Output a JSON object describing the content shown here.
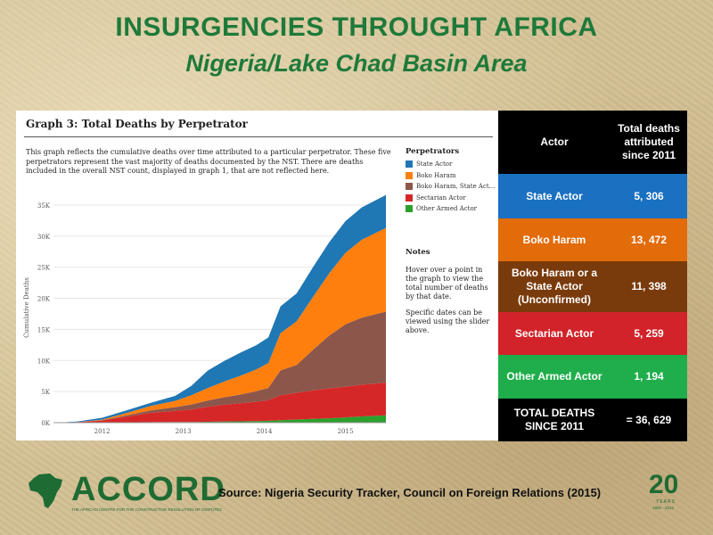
{
  "header": {
    "title": "INSURGENCIES THROUGHT AFRICA",
    "subtitle": "Nigeria/Lake Chad Basin Area"
  },
  "graph": {
    "title": "Graph 3: Total Deaths by Perpetrator",
    "description": "This graph reflects the cumulative deaths over time attributed to a particular perpetrator. These five perpetrators represent the vast majority of deaths documented by the NST. There are deaths included in the overall NST count, displayed in graph 1, that are not reflected here.",
    "legend_title": "Perpetrators",
    "notes_title": "Notes",
    "notes": [
      "Hover over a point in the graph to view the total number of deaths by that date.",
      "Specific dates can be viewed using the slider above."
    ]
  },
  "chart_data": {
    "type": "area",
    "stacked": true,
    "ylabel": "Cumulative Deaths",
    "xlabel": "",
    "ylim": [
      0,
      37000
    ],
    "xlim": [
      2011.4,
      2015.5
    ],
    "y_ticks": [
      0,
      5000,
      10000,
      15000,
      20000,
      25000,
      30000,
      35000
    ],
    "y_tick_labels": [
      "0K",
      "5K",
      "10K",
      "15K",
      "20K",
      "25K",
      "30K",
      "35K"
    ],
    "x_ticks": [
      2012,
      2013,
      2014,
      2015
    ],
    "x_tick_labels": [
      "2012",
      "2013",
      "2014",
      "2015"
    ],
    "grid": true,
    "legend_position": "right",
    "x": [
      2011.45,
      2011.7,
      2012.0,
      2012.3,
      2012.6,
      2012.9,
      2013.1,
      2013.3,
      2013.5,
      2013.7,
      2013.9,
      2014.05,
      2014.2,
      2014.4,
      2014.6,
      2014.8,
      2015.0,
      2015.2,
      2015.5
    ],
    "series": [
      {
        "name": "Other Armed Actor",
        "color": "#2ca02c",
        "values": [
          0,
          20,
          40,
          60,
          80,
          100,
          120,
          150,
          180,
          210,
          250,
          300,
          400,
          500,
          600,
          700,
          850,
          1000,
          1194
        ]
      },
      {
        "name": "Sectarian Actor",
        "color": "#d62728",
        "values": [
          0,
          80,
          300,
          900,
          1500,
          1800,
          2000,
          2400,
          2700,
          2900,
          3100,
          3300,
          4000,
          4300,
          4600,
          4800,
          4950,
          5100,
          5259
        ]
      },
      {
        "name": "Boko Haram, State Act...",
        "color": "#8c564b",
        "values": [
          0,
          0,
          50,
          200,
          400,
          600,
          800,
          1000,
          1200,
          1400,
          1700,
          2000,
          4000,
          4500,
          6500,
          8500,
          10000,
          10800,
          11398
        ]
      },
      {
        "name": "Boko Haram",
        "color": "#ff7f0e",
        "values": [
          0,
          0,
          100,
          400,
          700,
          1000,
          1500,
          2000,
          2500,
          3000,
          3500,
          4000,
          6000,
          7000,
          8500,
          10000,
          11500,
          12500,
          13472
        ]
      },
      {
        "name": "State Actor",
        "color": "#1f77b4",
        "values": [
          0,
          100,
          300,
          400,
          500,
          800,
          1500,
          2800,
          3300,
          3700,
          3900,
          4100,
          4300,
          4500,
          4800,
          5000,
          5100,
          5200,
          5306
        ]
      }
    ]
  },
  "table": {
    "header": {
      "actor": "Actor",
      "deaths": "Total deaths attributed since 2011"
    },
    "rows": [
      {
        "actor": "State Actor",
        "deaths": "5, 306",
        "color": "#1a70c1"
      },
      {
        "actor": "Boko Haram",
        "deaths": "13, 472",
        "color": "#e26b0a"
      },
      {
        "actor": "Boko Haram or a State Actor (Unconfirmed)",
        "deaths": "11, 398",
        "color": "#7a3b0c"
      },
      {
        "actor": "Sectarian Actor",
        "deaths": "5, 259",
        "color": "#d2232a"
      },
      {
        "actor": "Other Armed Actor",
        "deaths": "1, 194",
        "color": "#1fae4b"
      }
    ],
    "total": {
      "actor": "TOTAL DEATHS SINCE 2011",
      "deaths": "= 36, 629"
    }
  },
  "footer": {
    "logo_word": "ACCORD",
    "logo_tagline": "THE AFRICAN CENTRE FOR THE CONSTRUCTIVE RESOLUTION OF DISPUTES",
    "source": "Source: Nigeria Security Tracker, Council on Foreign Relations (2015)",
    "badge_number": "20",
    "badge_text": "YEARS",
    "badge_years": "1992 - 2012"
  }
}
